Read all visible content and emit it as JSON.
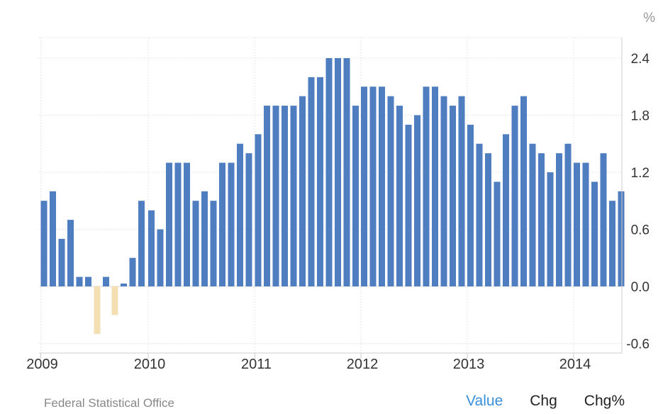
{
  "chart_data": {
    "type": "bar",
    "unit": "%",
    "x_tick_labels": [
      "2009",
      "2010",
      "2011",
      "2012",
      "2013",
      "2014"
    ],
    "y_tick_labels": [
      "-0.6",
      "0.0",
      "0.6",
      "1.2",
      "1.8",
      "2.4"
    ],
    "y_ticks": [
      -0.6,
      0.0,
      0.6,
      1.2,
      1.8,
      2.4
    ],
    "ylim": [
      -0.7,
      2.6
    ],
    "grid": true,
    "colors": {
      "positive": "#4f7ec0",
      "negative": "#f3dfb1"
    },
    "x": [
      "2009-01",
      "2009-02",
      "2009-03",
      "2009-04",
      "2009-05",
      "2009-06",
      "2009-07",
      "2009-08",
      "2009-09",
      "2009-10",
      "2009-11",
      "2009-12",
      "2010-01",
      "2010-02",
      "2010-03",
      "2010-04",
      "2010-05",
      "2010-06",
      "2010-07",
      "2010-08",
      "2010-09",
      "2010-10",
      "2010-11",
      "2010-12",
      "2011-01",
      "2011-02",
      "2011-03",
      "2011-04",
      "2011-05",
      "2011-06",
      "2011-07",
      "2011-08",
      "2011-09",
      "2011-10",
      "2011-11",
      "2011-12",
      "2012-01",
      "2012-02",
      "2012-03",
      "2012-04",
      "2012-05",
      "2012-06",
      "2012-07",
      "2012-08",
      "2012-09",
      "2012-10",
      "2012-11",
      "2012-12",
      "2013-01",
      "2013-02",
      "2013-03",
      "2013-04",
      "2013-05",
      "2013-06",
      "2013-07",
      "2013-08",
      "2013-09",
      "2013-10",
      "2013-11",
      "2013-12",
      "2014-01",
      "2014-02",
      "2014-03",
      "2014-04",
      "2014-05",
      "2014-06"
    ],
    "values": [
      0.9,
      1.0,
      0.5,
      0.7,
      0.1,
      0.1,
      -0.5,
      0.1,
      -0.3,
      0.03,
      0.3,
      0.9,
      0.8,
      0.6,
      1.3,
      1.3,
      1.3,
      0.9,
      1.0,
      0.9,
      1.3,
      1.3,
      1.5,
      1.4,
      1.6,
      1.9,
      1.9,
      1.9,
      1.9,
      2.0,
      2.2,
      2.2,
      2.4,
      2.4,
      2.4,
      1.9,
      2.1,
      2.1,
      2.1,
      2.0,
      1.9,
      1.7,
      1.8,
      2.1,
      2.1,
      2.0,
      1.9,
      2.0,
      1.7,
      1.5,
      1.4,
      1.1,
      1.6,
      1.9,
      2.0,
      1.5,
      1.4,
      1.2,
      1.4,
      1.5,
      1.3,
      1.3,
      1.1,
      1.4,
      0.9,
      1.0
    ]
  },
  "footer": {
    "source": "Federal Statistical Office",
    "tabs": [
      {
        "label": "Value",
        "active": true
      },
      {
        "label": "Chg",
        "active": false
      },
      {
        "label": "Chg%",
        "active": false
      }
    ]
  }
}
